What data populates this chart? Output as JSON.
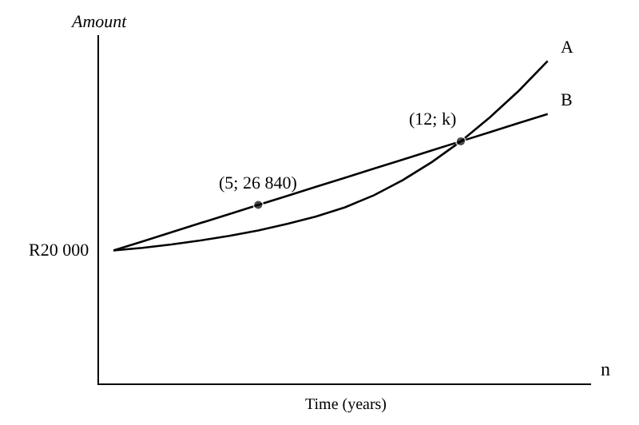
{
  "chart_data": {
    "type": "line",
    "ylabel": "Amount",
    "categories": [
      null,
      null,
      null,
      null,
      null,
      null,
      null,
      null,
      null,
      null,
      null,
      null,
      null,
      null,
      null,
      null
    ],
    "series": [
      {
        "name": "A",
        "color": "#000000",
        "values": [
          20000,
          20400,
          20900,
          21500,
          22200,
          23000,
          24000,
          25100,
          26500,
          28300,
          30600,
          33300,
          36416,
          40000,
          44000,
          48500
        ]
      },
      {
        "name": "B",
        "color": "#000000",
        "values": [
          20000,
          21368,
          22736,
          24104,
          25472,
          26840,
          28208,
          29576,
          30944,
          32312,
          33680,
          35048,
          36416,
          37784,
          39152,
          40520
        ],
        "value_labels": [
          "R20 000",
          null,
          null,
          null,
          null,
          "(5; 26 840)",
          null,
          null,
          null,
          null,
          null,
          null,
          null,
          null,
          null,
          null
        ]
      }
    ],
    "annotations": [
      "(12; k)",
      "n",
      "Time (years)"
    ],
    "legend": false
  }
}
